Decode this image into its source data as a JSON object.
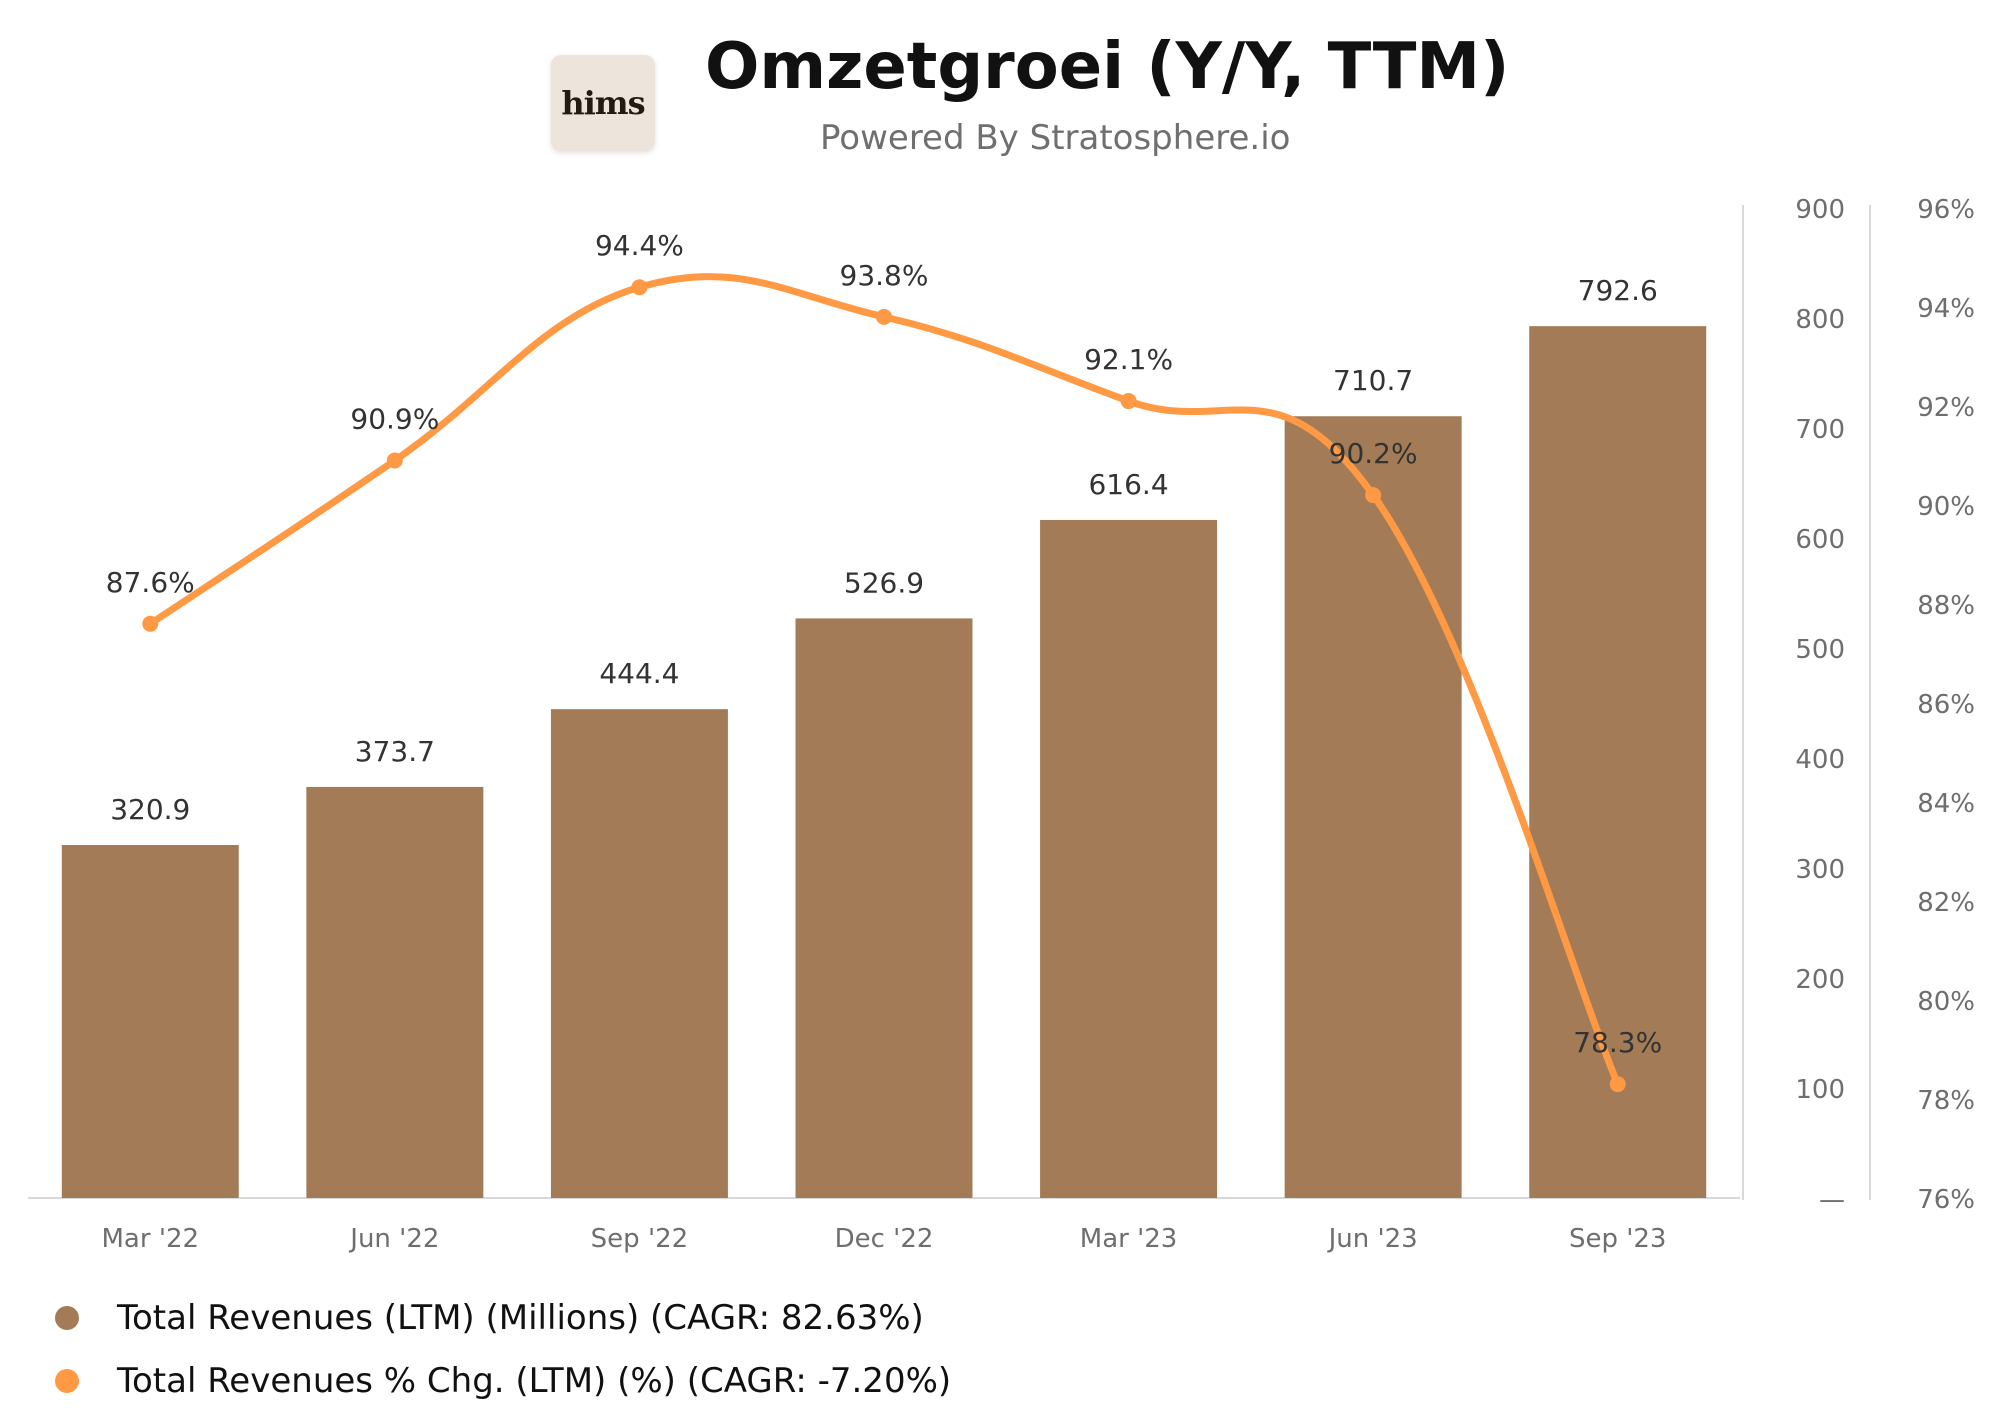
{
  "header": {
    "logo_text": "hims",
    "title": "Omzetgroei (Y/Y, TTM)",
    "subtitle": "Powered By Stratosphere.io"
  },
  "colors": {
    "bar": "#a37c57",
    "line": "#ff9944",
    "axis_text": "#6e6e6e",
    "label_text": "#333333",
    "axis_line": "#d9d9d9"
  },
  "legend": [
    {
      "label": "Total Revenues (LTM) (Millions) (CAGR: 82.63%)",
      "color": "#a37c57"
    },
    {
      "label": "Total Revenues % Chg. (LTM) (%) (CAGR: -7.20%)",
      "color": "#ff9944"
    }
  ],
  "chart_data": {
    "type": "bar",
    "title": "Omzetgroei (Y/Y, TTM)",
    "categories": [
      "Mar '22",
      "Jun '22",
      "Sep '22",
      "Dec '22",
      "Mar '23",
      "Jun '23",
      "Sep '23"
    ],
    "series": [
      {
        "name": "Total Revenues (LTM) (Millions) (CAGR: 82.63%)",
        "type": "bar",
        "axis": "left",
        "values": [
          320.9,
          373.7,
          444.4,
          526.9,
          616.4,
          710.7,
          792.6
        ],
        "labels": [
          "320.9",
          "373.7",
          "444.4",
          "526.9",
          "616.4",
          "710.7",
          "792.6"
        ]
      },
      {
        "name": "Total Revenues % Chg. (LTM) (%) (CAGR: -7.20%)",
        "type": "line",
        "axis": "right",
        "values": [
          87.6,
          90.9,
          94.4,
          93.8,
          92.1,
          90.2,
          78.3
        ],
        "labels": [
          "87.6%",
          "90.9%",
          "94.4%",
          "93.8%",
          "92.1%",
          "90.2%",
          "78.3%"
        ]
      }
    ],
    "y_left": {
      "range": [
        0,
        900
      ],
      "ticks": [
        0,
        100,
        200,
        300,
        400,
        500,
        600,
        700,
        800,
        900
      ],
      "tick_labels": [
        "—",
        "100",
        "200",
        "300",
        "400",
        "500",
        "600",
        "700",
        "800",
        "900"
      ]
    },
    "y_right": {
      "range": [
        76,
        96
      ],
      "ticks": [
        76,
        78,
        80,
        82,
        84,
        86,
        88,
        90,
        92,
        94,
        96
      ],
      "tick_labels": [
        "76%",
        "78%",
        "80%",
        "82%",
        "84%",
        "86%",
        "88%",
        "90%",
        "92%",
        "94%",
        "96%"
      ]
    },
    "grid": false,
    "legend_position": "bottom-left"
  }
}
